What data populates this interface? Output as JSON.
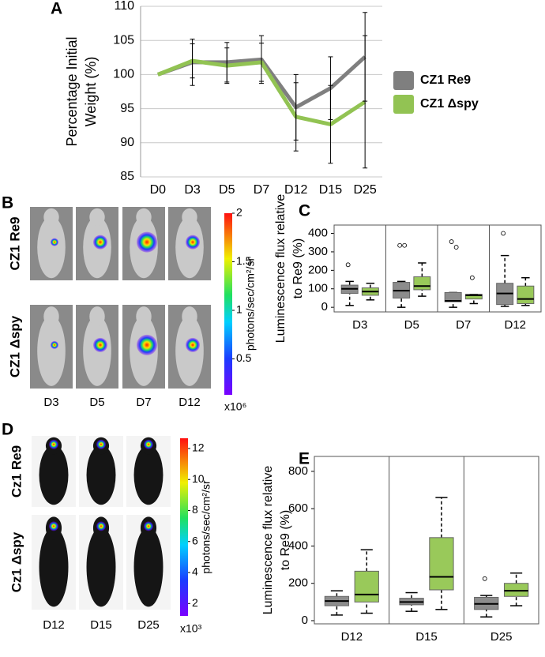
{
  "chart_data": [
    {
      "panel": "A",
      "type": "line",
      "ylabel": [
        "Percentage Initial",
        "Weight (%)"
      ],
      "categories": [
        "D0",
        "D3",
        "D5",
        "D7",
        "D12",
        "D15",
        "D25"
      ],
      "series": [
        {
          "name": "CZ1 Re9",
          "color": "#7f7f7f",
          "values": [
            100,
            101.8,
            101.8,
            102.2,
            95.2,
            98,
            102.6
          ],
          "errors": [
            0,
            3.4,
            2.9,
            3.5,
            4.8,
            4.6,
            6.5
          ]
        },
        {
          "name": "CZ1 Δspy",
          "color": "#92c353",
          "values": [
            100,
            102,
            101.3,
            101.8,
            93.8,
            92.7,
            96
          ],
          "errors": [
            0,
            2.5,
            2.6,
            2.8,
            5,
            5.7,
            9.7
          ]
        }
      ],
      "ylim": [
        85,
        110
      ],
      "yticks": [
        85,
        90,
        95,
        100,
        105,
        110
      ],
      "grid": true
    },
    {
      "panel": "C",
      "type": "boxplot",
      "ylabel": [
        "Luminescence flux relative",
        "to Re9 (%)"
      ],
      "categories": [
        "D3",
        "D5",
        "D7",
        "D12"
      ],
      "series": [
        {
          "color": "#8c8c8c",
          "boxes": [
            {
              "whislo": 10,
              "q1": 75,
              "med": 100,
              "q3": 120,
              "whishi": 140,
              "fliers": [
                230
              ]
            },
            {
              "whislo": 0,
              "q1": 50,
              "med": 90,
              "q3": 135,
              "whishi": 140,
              "fliers": [
                335,
                335
              ]
            },
            {
              "whislo": 0,
              "q1": 30,
              "med": 35,
              "q3": 80,
              "whishi": 80,
              "fliers": [
                355,
                325
              ]
            },
            {
              "whislo": 5,
              "q1": 15,
              "med": 75,
              "q3": 130,
              "whishi": 280,
              "fliers": [
                400
              ]
            }
          ]
        },
        {
          "color": "#99c95a",
          "boxes": [
            {
              "whislo": 40,
              "q1": 65,
              "med": 85,
              "q3": 105,
              "whishi": 130,
              "fliers": []
            },
            {
              "whislo": 60,
              "q1": 95,
              "med": 115,
              "q3": 165,
              "whishi": 240,
              "fliers": []
            },
            {
              "whislo": 20,
              "q1": 45,
              "med": 65,
              "q3": 70,
              "whishi": 70,
              "fliers": [
                160
              ]
            },
            {
              "whislo": 10,
              "q1": 20,
              "med": 45,
              "q3": 115,
              "whishi": 160,
              "fliers": []
            }
          ]
        }
      ],
      "ylim": [
        -25,
        445
      ],
      "yticks": [
        0,
        100,
        200,
        300,
        400
      ]
    },
    {
      "panel": "E",
      "type": "boxplot",
      "ylabel": [
        "Luminescence flux relative",
        "to Re9 (%)"
      ],
      "categories": [
        "D12",
        "D15",
        "D25"
      ],
      "series": [
        {
          "color": "#8c8c8c",
          "boxes": [
            {
              "whislo": 30,
              "q1": 80,
              "med": 105,
              "q3": 130,
              "whishi": 160,
              "fliers": []
            },
            {
              "whislo": 50,
              "q1": 85,
              "med": 100,
              "q3": 120,
              "whishi": 150,
              "fliers": []
            },
            {
              "whislo": 20,
              "q1": 60,
              "med": 90,
              "q3": 125,
              "whishi": 135,
              "fliers": [
                225
              ]
            }
          ]
        },
        {
          "color": "#99c95a",
          "boxes": [
            {
              "whislo": 40,
              "q1": 100,
              "med": 140,
              "q3": 265,
              "whishi": 380,
              "fliers": []
            },
            {
              "whislo": 60,
              "q1": 165,
              "med": 235,
              "q3": 445,
              "whishi": 660,
              "fliers": []
            },
            {
              "whislo": 80,
              "q1": 130,
              "med": 160,
              "q3": 200,
              "whishi": 255,
              "fliers": []
            }
          ]
        }
      ],
      "ylim": [
        -17,
        880
      ],
      "yticks": [
        0,
        200,
        400,
        600,
        800
      ]
    }
  ],
  "image_panels": [
    {
      "panel": "B",
      "rows": [
        "CZ1 Re9",
        "CZ1 Δspy"
      ],
      "columns": [
        "D3",
        "D5",
        "D7",
        "D12"
      ],
      "colorbar": {
        "label": "photons/sec/cm²/sr",
        "multiplier": "x10⁶",
        "lim": [
          0.13,
          2
        ],
        "ticks": [
          0.5,
          1,
          1.5,
          2
        ]
      }
    },
    {
      "panel": "D",
      "rows": [
        "Cz1 Re9",
        "Cz1 Δspy"
      ],
      "columns": [
        "D12",
        "D15",
        "D25"
      ],
      "colorbar": {
        "label": "photons/sec/cm²/sr",
        "multiplier": "x10³",
        "lim": [
          1.2,
          12.66
        ],
        "ticks": [
          2,
          4,
          6,
          8,
          10,
          12
        ]
      }
    }
  ]
}
